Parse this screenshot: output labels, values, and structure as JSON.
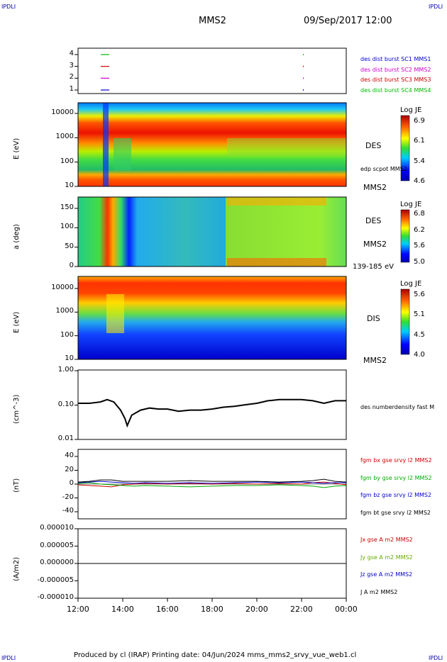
{
  "corner_label": "IPDLI",
  "header": {
    "spacecraft": "MMS2",
    "datetime": "09/Sep/2017 12:00"
  },
  "footer": "Produced by cl (IRAP)   Printing date: 04/Jun/2024   mms_mms2_srvy_vue_web1.cl",
  "time_axis": [
    "12:00",
    "14:00",
    "16:00",
    "18:00",
    "20:00",
    "22:00",
    "00:00"
  ],
  "chart_data": [
    {
      "type": "scatter",
      "panel": "burst_availability",
      "yticks": [
        "4",
        "3",
        "2",
        "1"
      ],
      "series": [
        {
          "name": "des dist burst SC1 MMS1",
          "color": "#0000cc",
          "level": 1
        },
        {
          "name": "des dist burst SC2 MMS2",
          "color": "#cc00cc",
          "level": 2
        },
        {
          "name": "des dist burst SC3 MMS3",
          "color": "#cc0000",
          "level": 3
        },
        {
          "name": "des dist burst SC4 MMS4",
          "color": "#00bb00",
          "level": 4
        }
      ]
    },
    {
      "type": "heatmap",
      "panel": "des_energy",
      "ylabel": "E (eV)",
      "yticks": [
        "10000",
        "1000",
        "100",
        "10"
      ],
      "label": "DES",
      "sublabel": "edp scpot MMS2",
      "spacecraft": "MMS2",
      "colorbar": {
        "title": "Log JE",
        "ticks": [
          "6.9",
          "6.1",
          "5.4",
          "4.6"
        ],
        "range": [
          4.6,
          6.9
        ]
      }
    },
    {
      "type": "heatmap",
      "panel": "des_pitch_angle",
      "ylabel": "a (deg)",
      "yticks": [
        "150",
        "100",
        "50",
        "0"
      ],
      "label": "DES",
      "spacecraft": "MMS2",
      "energy_range": "139-185 eV",
      "colorbar": {
        "title": "Log JE",
        "ticks": [
          "6.8",
          "6.2",
          "5.6",
          "5.0"
        ],
        "range": [
          5.0,
          6.8
        ]
      }
    },
    {
      "type": "heatmap",
      "panel": "dis_energy",
      "ylabel": "E (eV)",
      "yticks": [
        "10000",
        "1000",
        "100",
        "10"
      ],
      "label": "DIS",
      "spacecraft": "MMS2",
      "colorbar": {
        "title": "Log JE",
        "ticks": [
          "5.6",
          "5.1",
          "4.5",
          "4.0"
        ],
        "range": [
          4.0,
          5.6
        ]
      }
    },
    {
      "type": "line",
      "panel": "density",
      "ylabel": "(cm^-3)",
      "yticks": [
        "1.00",
        "0.10",
        "0.01"
      ],
      "ylim": [
        0.01,
        1.0
      ],
      "log": true,
      "series": [
        {
          "name": "des numberdensity fast M",
          "color": "#000000",
          "x": [
            12.0,
            12.5,
            13.0,
            13.3,
            13.6,
            13.9,
            14.1,
            14.2,
            14.4,
            14.8,
            15.2,
            15.6,
            16.0,
            16.5,
            17.0,
            17.5,
            18.0,
            18.5,
            19.0,
            19.5,
            20.0,
            20.5,
            21.0,
            21.5,
            22.0,
            22.5,
            23.0,
            23.5,
            24.0
          ],
          "values": [
            0.11,
            0.11,
            0.12,
            0.14,
            0.12,
            0.07,
            0.04,
            0.025,
            0.05,
            0.07,
            0.08,
            0.075,
            0.075,
            0.065,
            0.07,
            0.07,
            0.075,
            0.085,
            0.09,
            0.1,
            0.11,
            0.13,
            0.14,
            0.14,
            0.14,
            0.13,
            0.11,
            0.13,
            0.13
          ]
        }
      ]
    },
    {
      "type": "line",
      "panel": "magnetic_field",
      "ylabel": "(nT)",
      "yticks": [
        "40",
        "20",
        "0",
        "-20",
        "-40"
      ],
      "ylim": [
        -50,
        50
      ],
      "x": [
        12.0,
        12.5,
        13.0,
        13.5,
        14.0,
        14.5,
        15.0,
        16.0,
        17.0,
        18.0,
        19.0,
        20.0,
        21.0,
        22.0,
        22.5,
        23.0,
        23.5,
        24.0
      ],
      "series": [
        {
          "name": "fgm bx gse srvy l2 MMS2",
          "color": "#cc0000",
          "values": [
            -1,
            -2,
            -3,
            -4,
            -1,
            0,
            1,
            0,
            1,
            0,
            1,
            0,
            1,
            0,
            2,
            3,
            1,
            -1
          ]
        },
        {
          "name": "fgm by gse srvy l2 MMS2",
          "color": "#00aa00",
          "values": [
            1,
            2,
            0,
            -1,
            -2,
            -3,
            -2,
            -3,
            -4,
            -3,
            -2,
            -2,
            -1,
            -2,
            -3,
            -5,
            -3,
            -2
          ]
        },
        {
          "name": "fgm bz gse srvy l2 MMS2",
          "color": "#0000cc",
          "values": [
            2,
            3,
            4,
            3,
            2,
            1,
            2,
            1,
            2,
            1,
            2,
            3,
            2,
            3,
            2,
            1,
            2,
            2
          ]
        },
        {
          "name": "fgm bt gse srvy l2 MMS2",
          "color": "#000000",
          "values": [
            3,
            4,
            6,
            6,
            4,
            4,
            4,
            4,
            5,
            4,
            4,
            4,
            3,
            4,
            5,
            7,
            4,
            3
          ]
        }
      ]
    },
    {
      "type": "line",
      "panel": "current_density",
      "ylabel": "(A/m2)",
      "yticks": [
        "0.000010",
        "0.000005",
        "0.000000",
        "-0.000005",
        "-0.000010"
      ],
      "ylim": [
        -1e-05,
        1e-05
      ],
      "series": [
        {
          "name": "Jx gse A m2 MMS2",
          "color": "#cc0000"
        },
        {
          "name": "Jy gse A m2 MMS2",
          "color": "#66aa00"
        },
        {
          "name": "Jz gse A m2 MMS2",
          "color": "#0000cc"
        },
        {
          "name": "J A m2 MMS2",
          "color": "#000000",
          "values": [
            0,
            0
          ]
        }
      ]
    }
  ]
}
